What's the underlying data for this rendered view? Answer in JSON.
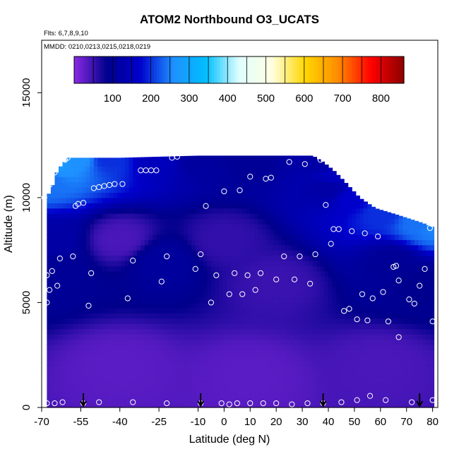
{
  "chart_data": {
    "type": "heatmap",
    "title": "ATOM2 Northbound O3_UCATS",
    "annotations": {
      "flights": "Flts: 6,7,8,9,10",
      "dates": "MMDD: 0210,0213,0215,0218,0219"
    },
    "xlabel": "Latitude (deg N)",
    "ylabel": "Altitude (m)",
    "xlim": [
      -70,
      82
    ],
    "ylim": [
      0,
      17500
    ],
    "x_ticks": [
      -70,
      -55,
      -40,
      -25,
      -10,
      0,
      10,
      20,
      30,
      40,
      50,
      60,
      70,
      80
    ],
    "y_ticks": [
      0,
      5000,
      10000,
      15000
    ],
    "colorbar": {
      "ticks": [
        100,
        200,
        300,
        400,
        500,
        600,
        700,
        800
      ],
      "range": [
        0,
        860
      ],
      "placement": "top inside plot",
      "colors": [
        "#8a2be2",
        "#00008b",
        "#0000cd",
        "#1e90ff",
        "#00bfff",
        "#e0ffff",
        "#ffffe0",
        "#ffd700",
        "#ff8c00",
        "#ff0000",
        "#8b0000"
      ]
    },
    "arrow_latitudes": [
      -54,
      -9,
      38,
      75
    ],
    "profile_ceiling": [
      {
        "lat": -68,
        "alt": 10000
      },
      {
        "lat": -66,
        "alt": 10500
      },
      {
        "lat": -64,
        "alt": 11300
      },
      {
        "lat": -60,
        "alt": 11900
      },
      {
        "lat": -40,
        "alt": 11900
      },
      {
        "lat": -10,
        "alt": 12000
      },
      {
        "lat": 34,
        "alt": 12000
      },
      {
        "lat": 38,
        "alt": 11700
      },
      {
        "lat": 42,
        "alt": 11300
      },
      {
        "lat": 46,
        "alt": 10800
      },
      {
        "lat": 52,
        "alt": 10000
      },
      {
        "lat": 58,
        "alt": 9500
      },
      {
        "lat": 66,
        "alt": 9200
      },
      {
        "lat": 76,
        "alt": 8800
      },
      {
        "lat": 80,
        "alt": 8600
      }
    ],
    "ozone_field": [
      {
        "lat": -68,
        "alt": 10800,
        "o3": 240
      },
      {
        "lat": -64,
        "alt": 11600,
        "o3": 270
      },
      {
        "lat": -55,
        "alt": 11900,
        "o3": 260
      },
      {
        "lat": -45,
        "alt": 11900,
        "o3": 200
      },
      {
        "lat": -25,
        "alt": 11900,
        "o3": 150
      },
      {
        "lat": -10,
        "alt": 11900,
        "o3": 110
      },
      {
        "lat": 10,
        "alt": 11900,
        "o3": 100
      },
      {
        "lat": 36,
        "alt": 11800,
        "o3": 120
      },
      {
        "lat": 42,
        "alt": 11000,
        "o3": 150
      },
      {
        "lat": 50,
        "alt": 10000,
        "o3": 170
      },
      {
        "lat": 60,
        "alt": 9300,
        "o3": 200
      },
      {
        "lat": 75,
        "alt": 8800,
        "o3": 240
      },
      {
        "lat": 80,
        "alt": 8600,
        "o3": 250
      },
      {
        "lat": -66,
        "alt": 8000,
        "o3": 120
      },
      {
        "lat": -64,
        "alt": 6500,
        "o3": 100
      },
      {
        "lat": -24,
        "alt": 7000,
        "o3": 110
      },
      {
        "lat": 40,
        "alt": 10500,
        "o3": 120
      },
      {
        "lat": 65,
        "alt": 7000,
        "o3": 100
      },
      {
        "lat": 77,
        "alt": 6000,
        "o3": 90
      },
      {
        "lat": -40,
        "alt": 8000,
        "o3": 40
      },
      {
        "lat": 0,
        "alt": 8000,
        "o3": 55
      },
      {
        "lat": 20,
        "alt": 6000,
        "o3": 50
      },
      {
        "lat": -40,
        "alt": 2000,
        "o3": 30
      },
      {
        "lat": 10,
        "alt": 1500,
        "o3": 30
      },
      {
        "lat": 60,
        "alt": 2000,
        "o3": 40
      }
    ],
    "samples": [
      {
        "lat": -69,
        "alt": 10000
      },
      {
        "lat": -68,
        "alt": 6300
      },
      {
        "lat": -68,
        "alt": 5000
      },
      {
        "lat": -67,
        "alt": 10600
      },
      {
        "lat": -67,
        "alt": 5600
      },
      {
        "lat": -66,
        "alt": 6500
      },
      {
        "lat": -65,
        "alt": 11200
      },
      {
        "lat": -64,
        "alt": 5800
      },
      {
        "lat": -63,
        "alt": 7100
      },
      {
        "lat": -61,
        "alt": 11800
      },
      {
        "lat": -60,
        "alt": 11900
      },
      {
        "lat": -58,
        "alt": 7200
      },
      {
        "lat": -57,
        "alt": 9600
      },
      {
        "lat": -56,
        "alt": 9700
      },
      {
        "lat": -54,
        "alt": 9750
      },
      {
        "lat": -52,
        "alt": 4850
      },
      {
        "lat": -51,
        "alt": 6400
      },
      {
        "lat": -50,
        "alt": 10450
      },
      {
        "lat": -48,
        "alt": 10500
      },
      {
        "lat": -46,
        "alt": 10550
      },
      {
        "lat": -44,
        "alt": 10600
      },
      {
        "lat": -42,
        "alt": 10650
      },
      {
        "lat": -39,
        "alt": 10650
      },
      {
        "lat": -37,
        "alt": 5200
      },
      {
        "lat": -35,
        "alt": 7000
      },
      {
        "lat": -32,
        "alt": 11300
      },
      {
        "lat": -30,
        "alt": 11300
      },
      {
        "lat": -28,
        "alt": 11300
      },
      {
        "lat": -26,
        "alt": 11300
      },
      {
        "lat": -24,
        "alt": 6000
      },
      {
        "lat": -22,
        "alt": 7200
      },
      {
        "lat": -20,
        "alt": 11900
      },
      {
        "lat": -18,
        "alt": 11950
      },
      {
        "lat": -11,
        "alt": 6600
      },
      {
        "lat": -9,
        "alt": 7300
      },
      {
        "lat": -7,
        "alt": 9600
      },
      {
        "lat": -5,
        "alt": 5000
      },
      {
        "lat": -3,
        "alt": 6300
      },
      {
        "lat": 0,
        "alt": 10300
      },
      {
        "lat": 2,
        "alt": 5400
      },
      {
        "lat": 4,
        "alt": 6400
      },
      {
        "lat": 6,
        "alt": 10350
      },
      {
        "lat": 7,
        "alt": 5400
      },
      {
        "lat": 9,
        "alt": 6300
      },
      {
        "lat": 10,
        "alt": 11000
      },
      {
        "lat": 12,
        "alt": 5600
      },
      {
        "lat": 14,
        "alt": 6400
      },
      {
        "lat": 16,
        "alt": 10900
      },
      {
        "lat": 18,
        "alt": 10950
      },
      {
        "lat": 20,
        "alt": 6100
      },
      {
        "lat": 23,
        "alt": 7200
      },
      {
        "lat": 25,
        "alt": 11700
      },
      {
        "lat": 27,
        "alt": 6100
      },
      {
        "lat": 29,
        "alt": 7200
      },
      {
        "lat": 31,
        "alt": 11600
      },
      {
        "lat": 33,
        "alt": 5900
      },
      {
        "lat": 35,
        "alt": 7300
      },
      {
        "lat": 37,
        "alt": 11800
      },
      {
        "lat": 39,
        "alt": 9650
      },
      {
        "lat": 41,
        "alt": 7800
      },
      {
        "lat": 42,
        "alt": 8500
      },
      {
        "lat": 44,
        "alt": 8500
      },
      {
        "lat": 46,
        "alt": 4600
      },
      {
        "lat": 48,
        "alt": 4700
      },
      {
        "lat": 49,
        "alt": 8400
      },
      {
        "lat": 51,
        "alt": 4200
      },
      {
        "lat": 53,
        "alt": 5400
      },
      {
        "lat": 54,
        "alt": 8300
      },
      {
        "lat": 55,
        "alt": 4150
      },
      {
        "lat": 57,
        "alt": 5200
      },
      {
        "lat": 59,
        "alt": 8150
      },
      {
        "lat": 61,
        "alt": 5500
      },
      {
        "lat": 63,
        "alt": 4100
      },
      {
        "lat": 65,
        "alt": 6700
      },
      {
        "lat": 66,
        "alt": 6750
      },
      {
        "lat": 67,
        "alt": 6050
      },
      {
        "lat": 67,
        "alt": 3350
      },
      {
        "lat": 69,
        "alt": 9400
      },
      {
        "lat": 71,
        "alt": 5150
      },
      {
        "lat": 73,
        "alt": 4950
      },
      {
        "lat": 75,
        "alt": 5800
      },
      {
        "lat": 77,
        "alt": 6600
      },
      {
        "lat": 78,
        "alt": 9400
      },
      {
        "lat": 79,
        "alt": 8550
      },
      {
        "lat": 80,
        "alt": 4100
      },
      {
        "lat": 80,
        "alt": 350
      },
      {
        "lat": -68,
        "alt": 200
      },
      {
        "lat": -65,
        "alt": 200
      },
      {
        "lat": -62,
        "alt": 250
      },
      {
        "lat": -54,
        "alt": 200
      },
      {
        "lat": -48,
        "alt": 250
      },
      {
        "lat": -35,
        "alt": 250
      },
      {
        "lat": -22,
        "alt": 200
      },
      {
        "lat": -9,
        "alt": 200
      },
      {
        "lat": -1,
        "alt": 200
      },
      {
        "lat": 2,
        "alt": 150
      },
      {
        "lat": 5,
        "alt": 200
      },
      {
        "lat": 10,
        "alt": 200
      },
      {
        "lat": 15,
        "alt": 200
      },
      {
        "lat": 20,
        "alt": 200
      },
      {
        "lat": 26,
        "alt": 150
      },
      {
        "lat": 32,
        "alt": 200
      },
      {
        "lat": 38,
        "alt": 200
      },
      {
        "lat": 45,
        "alt": 250
      },
      {
        "lat": 51,
        "alt": 350
      },
      {
        "lat": 56,
        "alt": 550
      },
      {
        "lat": 62,
        "alt": 350
      },
      {
        "lat": 72,
        "alt": 250
      }
    ]
  }
}
